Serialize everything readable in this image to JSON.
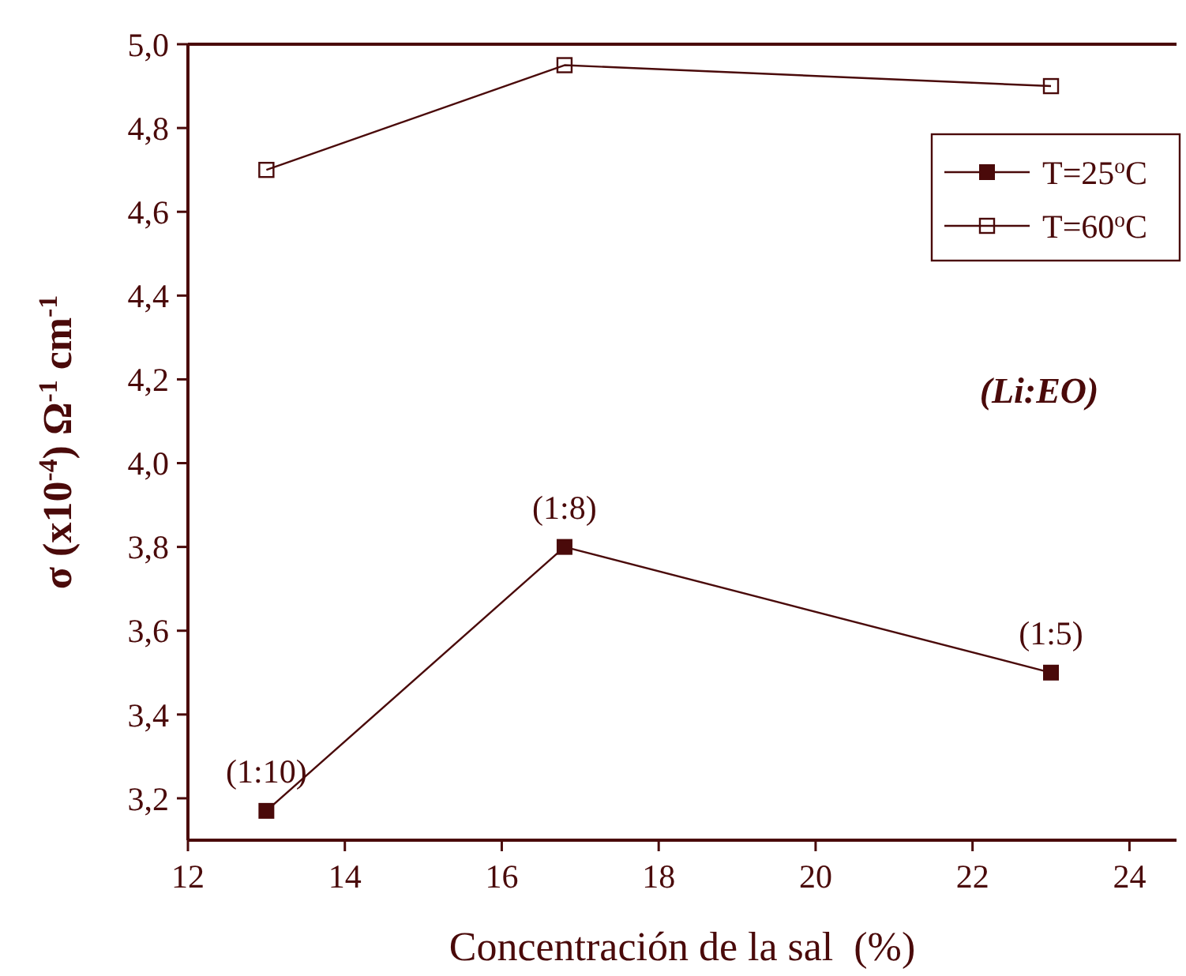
{
  "chart_data": {
    "type": "line",
    "xlabel": "Concentración de la sal  (%)",
    "ylabel": "σ (x10$^{-4}$) Ω$^{-1}$ cm$^{-1}$",
    "xlim": [
      12,
      24.6
    ],
    "xticks": [
      12,
      14,
      16,
      18,
      20,
      22,
      24
    ],
    "ylim": [
      3.1,
      5.0
    ],
    "yticks": [
      {
        "value": 3.2,
        "label": "3,2"
      },
      {
        "value": 3.4,
        "label": "3,4"
      },
      {
        "value": 3.6,
        "label": "3,6"
      },
      {
        "value": 3.8,
        "label": "3,8"
      },
      {
        "value": 4.0,
        "label": "4,0"
      },
      {
        "value": 4.2,
        "label": "4,2"
      },
      {
        "value": 4.4,
        "label": "4,4"
      },
      {
        "value": 4.6,
        "label": "4,6"
      },
      {
        "value": 4.8,
        "label": "4,8"
      },
      {
        "value": 5.0,
        "label": "5,0"
      }
    ],
    "x": [
      13,
      16.8,
      23
    ],
    "series": [
      {
        "name": "T=25$^{o}$C",
        "color": "#4a0a0a",
        "values": [
          3.17,
          3.8,
          3.5
        ],
        "marker": "square"
      },
      {
        "name": "T=60$^{o}$C",
        "color": "#4a0a0a",
        "values": [
          4.7,
          4.95,
          4.9
        ],
        "marker": "square_open"
      }
    ],
    "legend": "top right",
    "grid": false,
    "annotations": [
      {
        "text": "(1:10)",
        "x": 13,
        "y": 3.17
      },
      {
        "text": "(1:8)",
        "x": 16.8,
        "y": 3.8
      },
      {
        "text": "(1:5)",
        "x": 23,
        "y": 3.5
      },
      "(Li:EO)"
    ]
  }
}
